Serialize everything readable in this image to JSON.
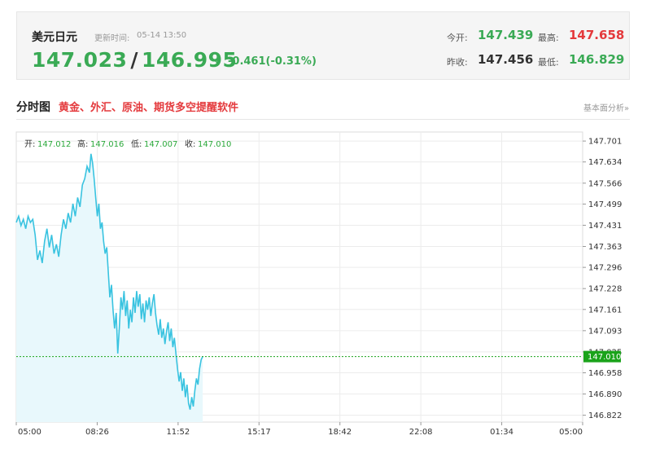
{
  "quote": {
    "name": "美元日元",
    "time_label": "更新时间:",
    "time": "05-14 13:50",
    "price_bid": "147.023",
    "price_ask": "146.995",
    "change_arrow": "↓",
    "change": "-0.461(-0.31%)",
    "open_label": "今开:",
    "open": "147.439",
    "high_label": "最高:",
    "high": "147.658",
    "prev_close_label": "昨收:",
    "prev_close": "147.456",
    "low_label": "最低:",
    "low": "146.829"
  },
  "section": {
    "title": "分时图",
    "link_text": "黄金、外汇、原油、期货多空提醒软件",
    "right_link": "基本面分析»"
  },
  "ohlc": {
    "open_label": "开:",
    "open": "147.012",
    "high_label": "高:",
    "high": "147.016",
    "low_label": "低:",
    "low": "147.007",
    "close_label": "收:",
    "close": "147.010"
  },
  "colors": {
    "up": "#e4393c",
    "down": "#3aaa55",
    "line": "#39c3e0",
    "fill": "#e8f8fc",
    "last_price_tag": "#1aa31a"
  },
  "chart_data": {
    "type": "line",
    "x_ticks": [
      "05:00",
      "08:26",
      "11:52",
      "15:17",
      "18:42",
      "22:08",
      "01:34",
      "05:00"
    ],
    "y_ticks": [
      "147.701",
      "147.634",
      "147.566",
      "147.499",
      "147.431",
      "147.363",
      "147.296",
      "147.228",
      "147.161",
      "147.093",
      "147.025",
      "146.958",
      "146.890",
      "146.822"
    ],
    "ylim": [
      146.8,
      147.73
    ],
    "reference_value": 147.01,
    "reference_label": "147.010",
    "grid": true,
    "x_span_minutes": 1440,
    "series": [
      {
        "points": [
          [
            0,
            147.44
          ],
          [
            6,
            147.46
          ],
          [
            12,
            147.43
          ],
          [
            18,
            147.45
          ],
          [
            24,
            147.42
          ],
          [
            30,
            147.46
          ],
          [
            36,
            147.44
          ],
          [
            42,
            147.45
          ],
          [
            48,
            147.4
          ],
          [
            54,
            147.32
          ],
          [
            60,
            147.35
          ],
          [
            66,
            147.31
          ],
          [
            72,
            147.38
          ],
          [
            78,
            147.42
          ],
          [
            84,
            147.36
          ],
          [
            90,
            147.4
          ],
          [
            96,
            147.34
          ],
          [
            102,
            147.37
          ],
          [
            108,
            147.33
          ],
          [
            114,
            147.4
          ],
          [
            120,
            147.45
          ],
          [
            126,
            147.42
          ],
          [
            132,
            147.47
          ],
          [
            138,
            147.44
          ],
          [
            144,
            147.5
          ],
          [
            150,
            147.46
          ],
          [
            156,
            147.52
          ],
          [
            162,
            147.49
          ],
          [
            168,
            147.56
          ],
          [
            174,
            147.58
          ],
          [
            180,
            147.62
          ],
          [
            186,
            147.6
          ],
          [
            190,
            147.66
          ],
          [
            194,
            147.63
          ],
          [
            198,
            147.58
          ],
          [
            202,
            147.52
          ],
          [
            206,
            147.46
          ],
          [
            210,
            147.5
          ],
          [
            214,
            147.42
          ],
          [
            218,
            147.44
          ],
          [
            222,
            147.38
          ],
          [
            226,
            147.34
          ],
          [
            230,
            147.36
          ],
          [
            234,
            147.28
          ],
          [
            238,
            147.2
          ],
          [
            242,
            147.24
          ],
          [
            246,
            147.16
          ],
          [
            250,
            147.1
          ],
          [
            254,
            147.15
          ],
          [
            258,
            147.02
          ],
          [
            262,
            147.1
          ],
          [
            266,
            147.2
          ],
          [
            270,
            147.16
          ],
          [
            274,
            147.22
          ],
          [
            278,
            147.14
          ],
          [
            282,
            147.19
          ],
          [
            286,
            147.1
          ],
          [
            290,
            147.16
          ],
          [
            294,
            147.12
          ],
          [
            298,
            147.2
          ],
          [
            302,
            147.15
          ],
          [
            306,
            147.22
          ],
          [
            310,
            147.17
          ],
          [
            314,
            147.21
          ],
          [
            318,
            147.13
          ],
          [
            322,
            147.18
          ],
          [
            326,
            147.12
          ],
          [
            330,
            147.19
          ],
          [
            334,
            147.16
          ],
          [
            338,
            147.2
          ],
          [
            342,
            147.14
          ],
          [
            346,
            147.18
          ],
          [
            350,
            147.21
          ],
          [
            354,
            147.15
          ],
          [
            358,
            147.11
          ],
          [
            362,
            147.08
          ],
          [
            366,
            147.13
          ],
          [
            370,
            147.07
          ],
          [
            374,
            147.1
          ],
          [
            378,
            147.05
          ],
          [
            382,
            147.09
          ],
          [
            386,
            147.12
          ],
          [
            390,
            147.06
          ],
          [
            394,
            147.1
          ],
          [
            398,
            147.04
          ],
          [
            402,
            147.07
          ],
          [
            406,
            147.02
          ],
          [
            410,
            146.97
          ],
          [
            414,
            146.93
          ],
          [
            418,
            146.96
          ],
          [
            422,
            146.9
          ],
          [
            426,
            146.94
          ],
          [
            430,
            146.88
          ],
          [
            434,
            146.92
          ],
          [
            438,
            146.86
          ],
          [
            442,
            146.84
          ],
          [
            446,
            146.88
          ],
          [
            450,
            146.85
          ],
          [
            454,
            146.9
          ],
          [
            458,
            146.94
          ],
          [
            462,
            146.92
          ],
          [
            466,
            146.97
          ],
          [
            470,
            147.0
          ],
          [
            474,
            147.01
          ]
        ]
      }
    ]
  }
}
